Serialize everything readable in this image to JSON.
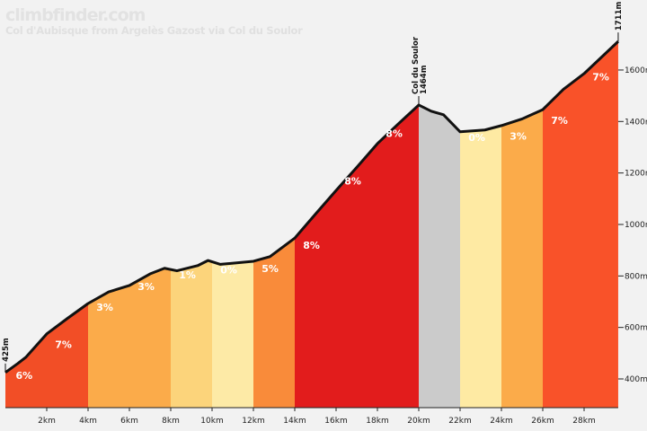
{
  "header": {
    "brand": "climbfinder.com",
    "subtitle": "Col d'Aubisque from Argelès Gazost via Col du Soulor"
  },
  "chart_data": {
    "type": "area",
    "title": "Col d'Aubisque from Argelès Gazost via Col du Soulor",
    "xlabel": "",
    "ylabel": "",
    "xlim": [
      0,
      29.65
    ],
    "ylim": [
      330,
      1770
    ],
    "x_ticks": [
      2,
      4,
      6,
      8,
      10,
      12,
      14,
      16,
      18,
      20,
      22,
      24,
      26,
      28
    ],
    "x_tick_labels": [
      "2km",
      "4km",
      "6km",
      "8km",
      "10km",
      "12km",
      "14km",
      "16km",
      "18km",
      "20km",
      "22km",
      "24km",
      "26km",
      "28km"
    ],
    "y_ticks": [
      400,
      600,
      800,
      1000,
      1200,
      1400,
      1600
    ],
    "y_tick_labels": [
      "400m",
      "600m",
      "800m",
      "1000m",
      "1200m",
      "1400m",
      "1600m"
    ],
    "profile": [
      [
        0,
        425
      ],
      [
        0.6,
        460
      ],
      [
        1,
        485
      ],
      [
        2,
        575
      ],
      [
        3,
        635
      ],
      [
        4,
        693
      ],
      [
        5,
        738
      ],
      [
        6,
        763
      ],
      [
        7,
        808
      ],
      [
        7.7,
        830
      ],
      [
        8.3,
        820
      ],
      [
        9.3,
        840
      ],
      [
        9.8,
        860
      ],
      [
        10.4,
        845
      ],
      [
        12,
        857
      ],
      [
        12.8,
        875
      ],
      [
        14,
        947
      ],
      [
        15,
        1040
      ],
      [
        16,
        1132
      ],
      [
        17,
        1222
      ],
      [
        18,
        1314
      ],
      [
        19,
        1390
      ],
      [
        20,
        1464
      ],
      [
        20.6,
        1440
      ],
      [
        21.2,
        1426
      ],
      [
        22,
        1360
      ],
      [
        23.2,
        1367
      ],
      [
        24,
        1384
      ],
      [
        25,
        1410
      ],
      [
        26,
        1446
      ],
      [
        27,
        1525
      ],
      [
        28,
        1586
      ],
      [
        29.65,
        1711
      ]
    ],
    "segments": [
      {
        "from": 0,
        "to": 4,
        "color": "#f24e26"
      },
      {
        "from": 4,
        "to": 8,
        "color": "#fbab4a"
      },
      {
        "from": 8,
        "to": 10,
        "color": "#fcd47b"
      },
      {
        "from": 10,
        "to": 12,
        "color": "#fdeaa6"
      },
      {
        "from": 12,
        "to": 14,
        "color": "#f98b3a"
      },
      {
        "from": 14,
        "to": 20,
        "color": "#e21c1c"
      },
      {
        "from": 20,
        "to": 22,
        "color": "#cbcbcb"
      },
      {
        "from": 22,
        "to": 24,
        "color": "#feeaa3"
      },
      {
        "from": 24,
        "to": 26,
        "color": "#fbab4a"
      },
      {
        "from": 26,
        "to": 29.65,
        "color": "#f95229"
      }
    ],
    "gradient_labels": [
      {
        "text": "6%",
        "km": 0.5,
        "elev": 400
      },
      {
        "text": "7%",
        "km": 2.4,
        "elev": 520
      },
      {
        "text": "3%",
        "km": 4.4,
        "elev": 665
      },
      {
        "text": "3%",
        "km": 6.4,
        "elev": 745
      },
      {
        "text": "1%",
        "km": 8.4,
        "elev": 790
      },
      {
        "text": "0%",
        "km": 10.4,
        "elev": 810
      },
      {
        "text": "5%",
        "km": 12.4,
        "elev": 815
      },
      {
        "text": "8%",
        "km": 14.4,
        "elev": 905
      },
      {
        "text": "8%",
        "km": 16.4,
        "elev": 1155
      },
      {
        "text": "8%",
        "km": 18.4,
        "elev": 1340
      },
      {
        "text": "0%",
        "km": 22.4,
        "elev": 1325
      },
      {
        "text": "3%",
        "km": 24.4,
        "elev": 1330
      },
      {
        "text": "7%",
        "km": 26.4,
        "elev": 1390
      },
      {
        "text": "7%",
        "km": 28.4,
        "elev": 1560
      }
    ],
    "annotations": [
      {
        "km": 0,
        "elev": 425,
        "lines": [
          "425m"
        ]
      },
      {
        "km": 20,
        "elev": 1464,
        "lines": [
          "Col du Soulor",
          "1464m"
        ]
      },
      {
        "km": 29.65,
        "elev": 1711,
        "lines": [
          "1711m"
        ]
      }
    ]
  }
}
